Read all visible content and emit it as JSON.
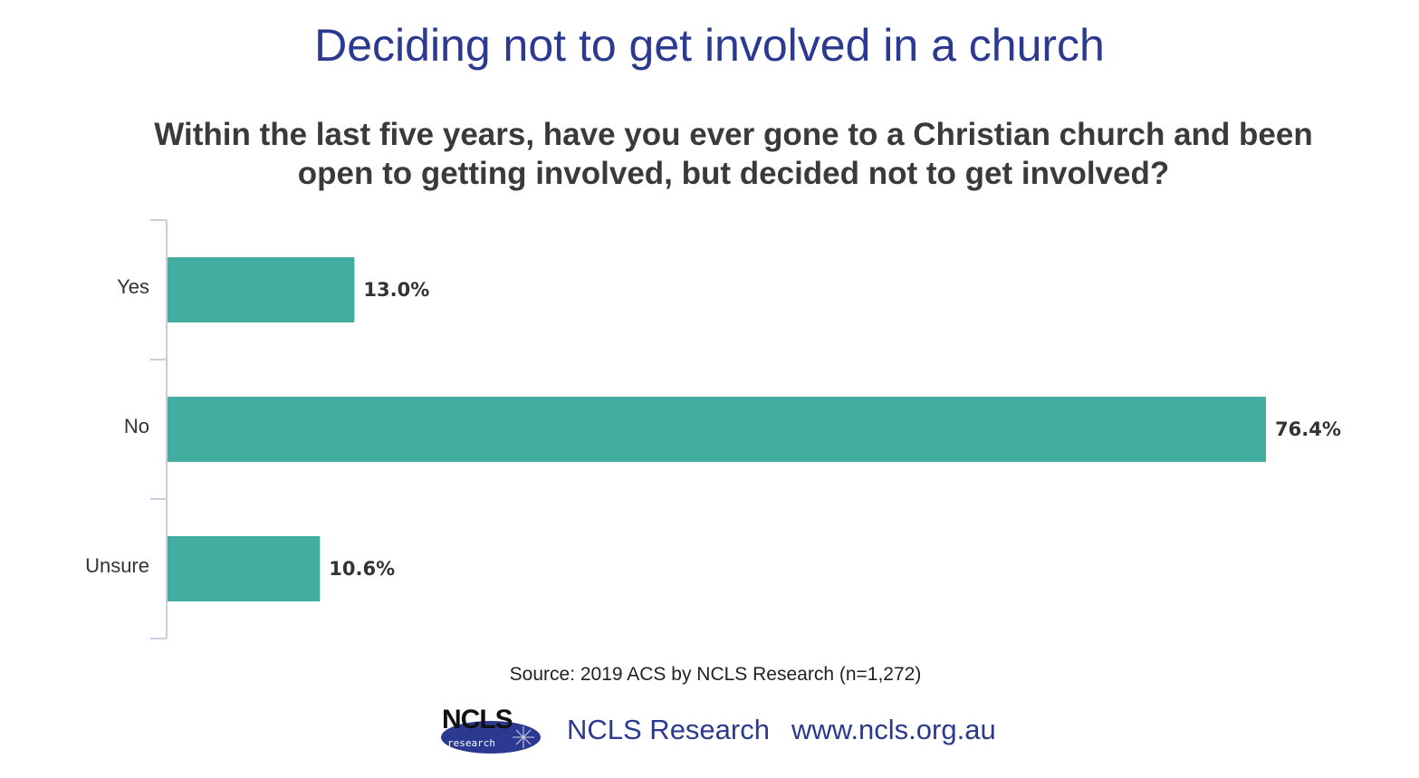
{
  "chart_data": {
    "type": "bar",
    "orientation": "horizontal",
    "title": "Deciding not to get involved in a church",
    "subtitle": "Within the last five years, have you ever gone to a Christian church and been open to getting involved, but decided not to get involved?",
    "categories": [
      "Yes",
      "No",
      "Unsure"
    ],
    "values": [
      13.0,
      76.4,
      10.6
    ],
    "value_labels": [
      "13.0%",
      "76.4%",
      "10.6%"
    ],
    "xlim": [
      0,
      76.4
    ],
    "grid": false,
    "legend": "none",
    "bar_color": "#42ae9f",
    "axis_color": "#c9cde0"
  },
  "source": "Source: 2019 ACS by NCLS Research (n=1,272)",
  "footer": {
    "logo_text": "NCLS",
    "logo_sub": "research",
    "org_name": "NCLS Research",
    "url": "www.ncls.org.au"
  },
  "colors": {
    "title": "#2b3990",
    "subtitle": "#3a3a3a",
    "logo_ellipse": "#2b3990"
  }
}
